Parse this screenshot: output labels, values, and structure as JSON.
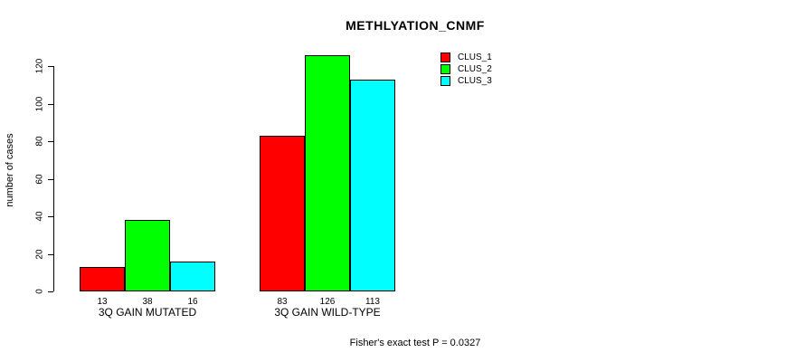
{
  "page": {
    "background": "#ffffff"
  },
  "chart_data": {
    "type": "bar",
    "title": "METHLYATION_CNMF",
    "ylabel": "number of cases",
    "xlabel": "",
    "categories": [
      "3Q GAIN MUTATED",
      "3Q GAIN WILD-TYPE"
    ],
    "series": [
      {
        "name": "CLUS_1",
        "color": "#ff0000",
        "values": [
          13,
          83
        ]
      },
      {
        "name": "CLUS_2",
        "color": "#00ff00",
        "values": [
          38,
          126
        ]
      },
      {
        "name": "CLUS_3",
        "color": "#00ffff",
        "values": [
          16,
          113
        ]
      }
    ],
    "yticks": [
      0,
      20,
      40,
      60,
      80,
      100,
      120
    ],
    "ylim": [
      0,
      130
    ],
    "grid": false,
    "bar_borders": "#000000",
    "legend_position": "top-right",
    "value_labels_shown": true,
    "annotation": "Fisher's exact test P = 0.0327"
  }
}
